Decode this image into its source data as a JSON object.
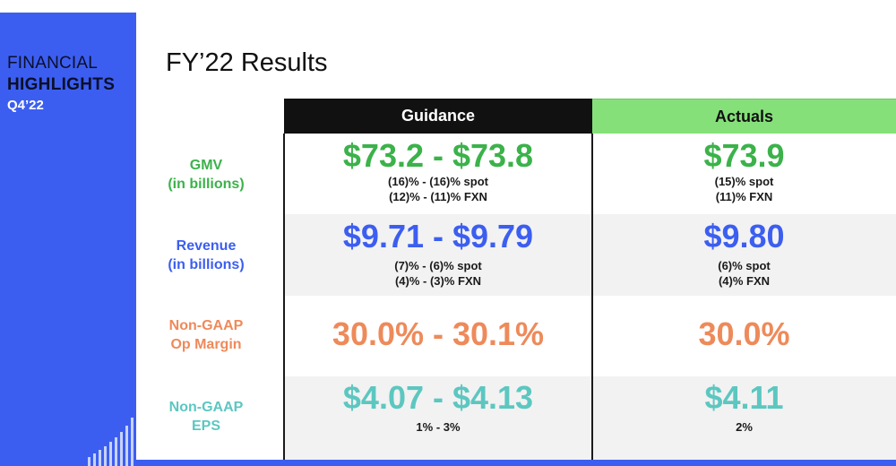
{
  "sidebar": {
    "line1": "FINANCIAL",
    "line2": "HIGHLIGHTS",
    "line3": "Q4’22"
  },
  "title": "FY’22 Results",
  "headers": {
    "guidance": "Guidance",
    "actuals": "Actuals"
  },
  "rows": [
    {
      "label1": "GMV",
      "label2": "(in billions)",
      "guidance": {
        "value": "$73.2 - $73.8",
        "sub1": "(16)% - (16)% spot",
        "sub2": "(12)% - (11)% FXN"
      },
      "actuals": {
        "value": "$73.9",
        "sub1": "(15)% spot",
        "sub2": "(11)% FXN"
      }
    },
    {
      "label1": "Revenue",
      "label2": "(in billions)",
      "guidance": {
        "value": "$9.71 - $9.79",
        "sub1": "(7)% - (6)% spot",
        "sub2": "(4)% - (3)% FXN"
      },
      "actuals": {
        "value": "$9.80",
        "sub1": "(6)% spot",
        "sub2": "(4)% FXN"
      }
    },
    {
      "label1": "Non-GAAP",
      "label2": "Op Margin",
      "guidance": {
        "value": "30.0% - 30.1%"
      },
      "actuals": {
        "value": "30.0%"
      }
    },
    {
      "label1": "Non-GAAP",
      "label2": "EPS",
      "guidance": {
        "value": "$4.07 - $4.13",
        "sub1": "1% - 3%"
      },
      "actuals": {
        "value": "$4.11",
        "sub1": "2%"
      }
    }
  ],
  "colors": {
    "sidebar": "#3c5ef0",
    "gmv": "#3bb24a",
    "revenue": "#3c5ef0",
    "margin": "#ee8a5a",
    "eps": "#5cc7c0",
    "actuals_header": "#86e07a"
  }
}
